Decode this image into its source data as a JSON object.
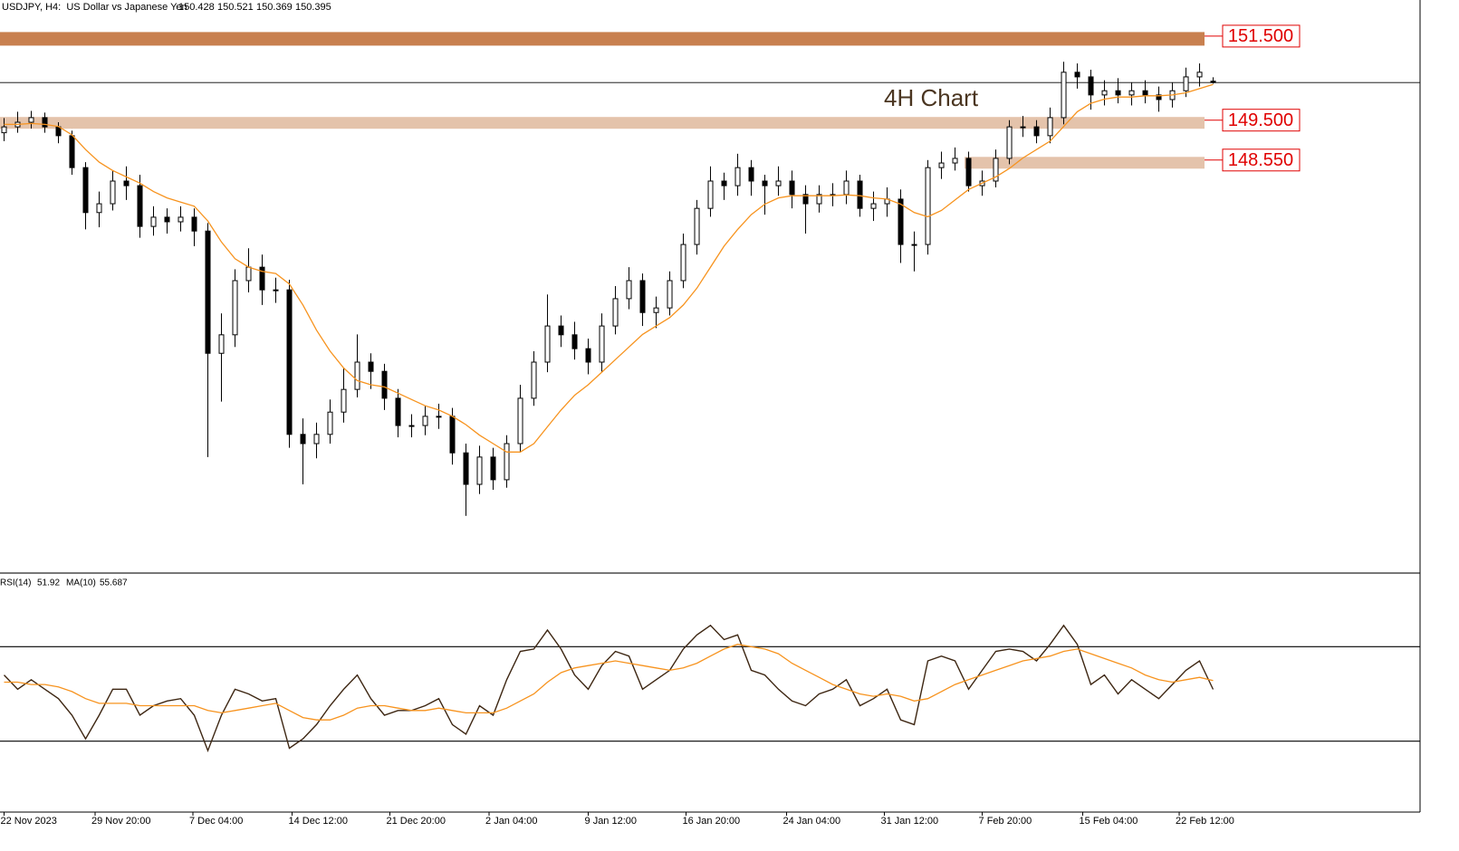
{
  "chart_data": {
    "type": "candlestick",
    "title": "USDJPY, H4:  US Dollar vs Japanese Yen",
    "annotation": "4H Chart",
    "open": [
      149.2,
      149.34,
      149.45,
      149.56,
      149.34,
      149.13,
      148.37,
      147.3,
      147.51,
      148.05,
      147.94,
      146.97,
      147.19,
      147.08,
      147.19,
      146.86,
      143.95,
      144.39,
      145.68,
      146.0,
      145.46,
      145.46,
      142.02,
      141.8,
      142.02,
      142.55,
      143.09,
      143.74,
      143.52,
      142.88,
      142.23,
      142.23,
      142.45,
      142.45,
      141.58,
      140.83,
      141.48,
      140.94,
      141.8,
      142.88,
      143.74,
      144.6,
      144.39,
      144.06,
      143.74,
      144.6,
      145.25,
      145.68,
      144.92,
      145.03,
      145.68,
      146.54,
      147.4,
      148.05,
      147.94,
      148.37,
      148.05,
      147.94,
      148.05,
      147.73,
      147.51,
      147.73,
      147.73,
      148.05,
      147.4,
      147.51,
      147.62,
      146.54,
      146.54,
      148.37,
      148.48,
      148.59,
      147.94,
      148.05,
      148.59,
      149.34,
      149.34,
      149.13,
      149.56,
      150.64,
      150.53,
      150.1,
      150.2,
      150.1,
      150.2,
      150.1,
      149.99,
      150.2,
      150.53,
      150.428
    ],
    "high": [
      149.55,
      149.7,
      149.72,
      149.68,
      149.45,
      149.25,
      148.5,
      147.8,
      148.3,
      148.4,
      148.2,
      147.45,
      147.4,
      147.45,
      147.4,
      147.05,
      144.9,
      145.95,
      146.45,
      146.3,
      145.75,
      145.7,
      142.4,
      142.3,
      142.85,
      143.6,
      144.4,
      143.95,
      143.7,
      143.1,
      142.5,
      142.7,
      142.75,
      142.65,
      141.8,
      141.75,
      141.7,
      142.0,
      143.2,
      144.0,
      145.35,
      144.85,
      144.7,
      144.3,
      144.9,
      145.55,
      146.0,
      145.85,
      145.3,
      145.9,
      146.8,
      147.6,
      148.4,
      148.25,
      148.7,
      148.55,
      148.2,
      148.4,
      148.3,
      147.95,
      147.95,
      148.0,
      148.3,
      148.2,
      147.8,
      147.9,
      147.85,
      146.85,
      148.55,
      148.75,
      148.85,
      148.75,
      148.3,
      148.8,
      149.5,
      149.6,
      149.5,
      149.8,
      150.89,
      150.85,
      150.7,
      150.45,
      150.5,
      150.4,
      150.45,
      150.3,
      150.4,
      150.75,
      150.85,
      150.521
    ],
    "low": [
      149.0,
      149.2,
      149.3,
      149.2,
      148.95,
      148.2,
      146.9,
      146.95,
      147.35,
      147.6,
      146.7,
      146.75,
      146.8,
      146.85,
      146.5,
      141.48,
      142.8,
      144.1,
      145.4,
      145.1,
      145.15,
      141.7,
      140.83,
      141.45,
      141.8,
      142.3,
      142.9,
      143.1,
      142.6,
      141.95,
      141.95,
      142.0,
      142.15,
      141.3,
      140.08,
      140.6,
      140.7,
      140.75,
      141.6,
      142.7,
      143.5,
      144.1,
      143.8,
      143.45,
      143.5,
      144.4,
      145.0,
      144.6,
      144.55,
      144.85,
      145.5,
      146.3,
      147.2,
      147.6,
      147.7,
      147.7,
      147.25,
      147.7,
      147.4,
      146.8,
      147.3,
      147.45,
      147.5,
      147.2,
      147.1,
      147.2,
      146.1,
      145.9,
      146.3,
      148.1,
      148.3,
      147.8,
      147.7,
      147.9,
      148.45,
      149.1,
      148.95,
      148.95,
      149.4,
      150.25,
      149.75,
      149.85,
      149.9,
      149.85,
      149.9,
      149.7,
      149.8,
      150.05,
      150.3,
      150.369
    ],
    "close": [
      149.34,
      149.45,
      149.56,
      149.34,
      149.13,
      148.37,
      147.3,
      147.51,
      148.05,
      147.94,
      146.97,
      147.19,
      147.08,
      147.19,
      146.86,
      143.95,
      144.39,
      145.68,
      146.0,
      145.46,
      145.46,
      142.02,
      141.8,
      142.02,
      142.55,
      143.09,
      143.74,
      143.52,
      142.88,
      142.23,
      142.23,
      142.45,
      142.45,
      141.58,
      140.83,
      141.48,
      140.94,
      141.8,
      142.88,
      143.74,
      144.6,
      144.39,
      144.06,
      143.74,
      144.6,
      145.25,
      145.68,
      144.92,
      145.03,
      145.68,
      146.54,
      147.4,
      148.05,
      147.94,
      148.37,
      148.05,
      147.94,
      148.05,
      147.73,
      147.51,
      147.73,
      147.73,
      148.05,
      147.4,
      147.51,
      147.62,
      146.54,
      146.54,
      148.37,
      148.48,
      148.59,
      147.94,
      148.05,
      148.59,
      149.34,
      149.34,
      149.13,
      149.56,
      150.64,
      150.53,
      150.1,
      150.2,
      150.1,
      150.2,
      150.1,
      149.99,
      150.2,
      150.53,
      150.64,
      150.395
    ],
    "ma_color": "#f7931e",
    "ma": [
      149.4,
      149.4,
      149.42,
      149.4,
      149.35,
      149.15,
      148.8,
      148.5,
      148.3,
      148.15,
      148.0,
      147.8,
      147.65,
      147.55,
      147.45,
      147.1,
      146.6,
      146.2,
      146.0,
      145.9,
      145.85,
      145.6,
      145.1,
      144.5,
      144.0,
      143.6,
      143.3,
      143.2,
      143.15,
      143.0,
      142.85,
      142.7,
      142.6,
      142.45,
      142.25,
      142.0,
      141.8,
      141.6,
      141.6,
      141.8,
      142.2,
      142.6,
      142.95,
      143.2,
      143.5,
      143.8,
      144.1,
      144.4,
      144.6,
      144.8,
      145.1,
      145.5,
      146.0,
      146.5,
      146.9,
      147.25,
      147.5,
      147.65,
      147.7,
      147.7,
      147.7,
      147.7,
      147.72,
      147.7,
      147.65,
      147.62,
      147.5,
      147.3,
      147.2,
      147.35,
      147.6,
      147.85,
      148.0,
      148.15,
      148.35,
      148.6,
      148.8,
      149.0,
      149.35,
      149.7,
      149.9,
      150.0,
      150.05,
      150.05,
      150.08,
      150.08,
      150.1,
      150.15,
      150.25,
      150.35
    ],
    "xlim": [
      -0.3,
      104.23
    ],
    "ylim": [
      138.74,
      152.36
    ],
    "xticks": [
      {
        "value": 0,
        "label": "22 Nov 2023"
      },
      {
        "value": 6.7,
        "label": "29 Nov 20:00"
      },
      {
        "value": 13.9,
        "label": "7 Dec 04:00"
      },
      {
        "value": 21.2,
        "label": "14 Dec 12:00"
      },
      {
        "value": 28.4,
        "label": "21 Dec 20:00"
      },
      {
        "value": 35.7,
        "label": "2 Jan 04:00"
      },
      {
        "value": 43,
        "label": "9 Jan 12:00"
      },
      {
        "value": 50.2,
        "label": "16 Jan 20:00"
      },
      {
        "value": 57.6,
        "label": "24 Jan 04:00"
      },
      {
        "value": 64.8,
        "label": "31 Jan 12:00"
      },
      {
        "value": 72,
        "label": "7 Feb 20:00"
      },
      {
        "value": 79.4,
        "label": "15 Feb 04:00"
      },
      {
        "value": 86.5,
        "label": "22 Feb 12:00"
      }
    ],
    "levels": [
      {
        "value": 151.5,
        "label": "151.500",
        "color": "#c8804f",
        "from": -0.3
      },
      {
        "value": 149.5,
        "label": "149.500",
        "color": "#e4c3ab",
        "from": -0.3
      },
      {
        "value": 148.55,
        "label": "148.550",
        "color": "#e4c3ab",
        "from": 70.7
      }
    ],
    "rsi": {
      "name": "RSI(14)",
      "color": "#3d2612",
      "values": [
        58,
        52,
        56,
        52,
        48,
        41,
        31,
        41,
        52,
        52,
        41,
        45,
        47,
        48,
        41,
        26,
        41,
        52,
        50,
        47,
        48,
        27,
        31,
        37,
        45,
        52,
        58,
        48,
        41,
        43,
        43,
        45,
        48,
        37,
        33,
        45,
        41,
        56,
        68,
        69,
        77,
        69,
        58,
        52,
        62,
        68,
        66,
        52,
        56,
        60,
        69,
        75,
        79,
        73,
        75,
        60,
        58,
        52,
        47,
        45,
        50,
        52,
        56,
        45,
        48,
        52,
        39,
        37,
        64,
        66,
        64,
        52,
        60,
        68,
        69,
        68,
        64,
        71,
        79,
        71,
        54,
        58,
        50,
        56,
        52,
        48,
        54,
        60,
        64,
        51.92
      ],
      "ma_name": "MA(10)",
      "ma_color": "#f7931e",
      "ma": [
        55,
        55,
        54,
        54,
        53,
        51,
        48,
        46,
        46,
        46,
        45,
        45,
        45,
        45,
        45,
        43,
        42,
        43,
        44,
        45,
        46,
        43,
        40,
        39,
        39,
        41,
        44,
        45,
        45,
        44,
        43,
        43,
        44,
        43,
        42,
        42,
        42,
        44,
        47,
        50,
        55,
        59,
        61,
        62,
        63,
        64,
        63,
        62,
        61,
        60,
        61,
        63,
        66,
        69,
        71,
        70,
        69,
        67,
        63,
        60,
        57,
        54,
        52,
        50,
        49,
        50,
        49,
        47,
        48,
        51,
        54,
        56,
        58,
        60,
        62,
        64,
        65,
        66,
        68,
        69,
        67,
        65,
        63,
        61,
        58,
        56,
        55,
        56,
        57,
        55.687
      ],
      "ylim": [
        0,
        100
      ],
      "levels": [
        30,
        70
      ]
    }
  }
}
